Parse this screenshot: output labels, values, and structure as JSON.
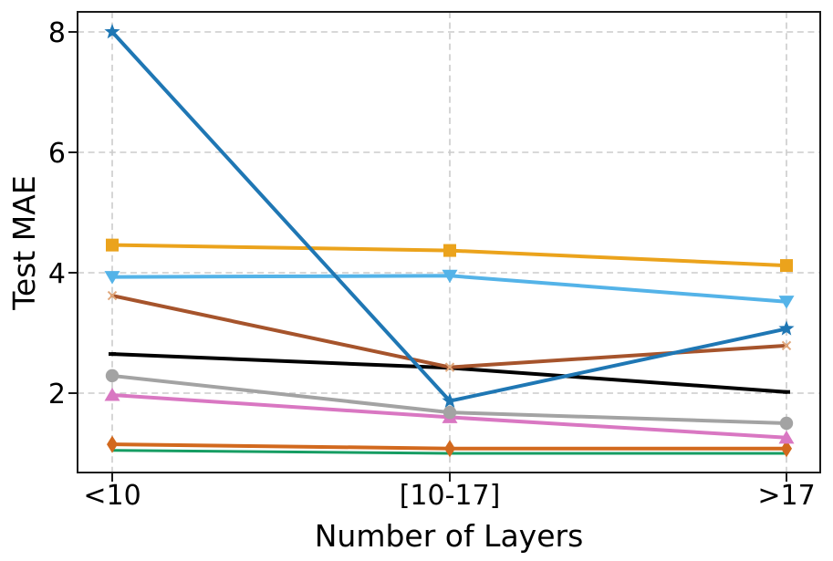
{
  "chart_data": {
    "type": "line",
    "title": "",
    "xlabel": "Number of Layers",
    "ylabel": "Test MAE",
    "categories": [
      "<10",
      "[10-17]",
      ">17"
    ],
    "yticks": [
      2,
      4,
      6,
      8
    ],
    "ylim": [
      0.68,
      8.33
    ],
    "grid": true,
    "grid_style": "dashed",
    "grid_color": "#cbcbcb",
    "background": "#ffffff",
    "legend": "none",
    "series": [
      {
        "color": "#169d63",
        "marker": "none",
        "values": [
          1.05,
          1.0,
          1.0
        ]
      },
      {
        "color": "#d2691e",
        "marker": "thin-diamond",
        "values": [
          1.15,
          1.08,
          1.08
        ]
      },
      {
        "color": "#d977c2",
        "marker": "triangle-up",
        "values": [
          1.97,
          1.6,
          1.26
        ]
      },
      {
        "color": "#a3a3a3",
        "marker": "circle",
        "values": [
          2.29,
          1.68,
          1.5
        ]
      },
      {
        "color": "#000000",
        "marker": "tick",
        "values": [
          2.65,
          2.42,
          2.02
        ]
      },
      {
        "color": "#a6542c",
        "marker": "x-small",
        "marker_color": "#e0a87c",
        "values": [
          3.62,
          2.43,
          2.79
        ]
      },
      {
        "color": "#54b3e8",
        "marker": "triangle-down",
        "values": [
          3.93,
          3.95,
          3.52
        ]
      },
      {
        "color": "#eba31c",
        "marker": "square",
        "values": [
          4.46,
          4.37,
          4.12
        ]
      },
      {
        "color": "#1f77b4",
        "marker": "star",
        "values": [
          8.0,
          1.87,
          3.07
        ]
      }
    ]
  }
}
